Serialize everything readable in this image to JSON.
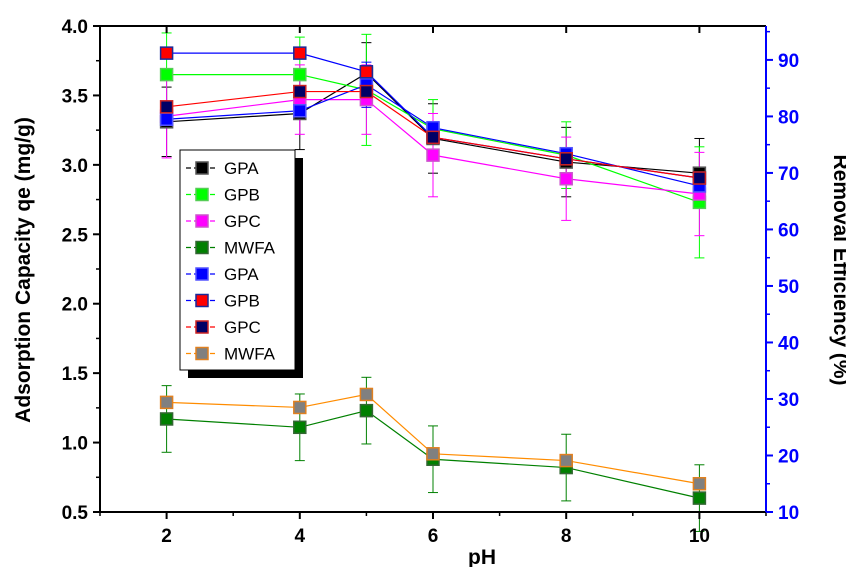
{
  "chart_data": {
    "type": "line",
    "xlabel": "pH",
    "ylabel_left": "Adsorption Capacity qe (mg/g)",
    "ylabel_right": "Removal Efficiency (%)",
    "x": [
      2,
      4,
      5,
      6,
      8,
      10
    ],
    "x_ticks": [
      "2",
      "4",
      "6",
      "8",
      "10"
    ],
    "x_tick_values": [
      2,
      4,
      6,
      8,
      10
    ],
    "xlim": [
      1,
      11
    ],
    "ylim_left": [
      0.5,
      4.0
    ],
    "ylim_right": [
      10,
      96
    ],
    "y_ticks_left": [
      "0.5",
      "1.0",
      "1.5",
      "2.0",
      "2.5",
      "3.0",
      "3.5",
      "4.0"
    ],
    "y_ticks_left_values": [
      0.5,
      1.0,
      1.5,
      2.0,
      2.5,
      3.0,
      3.5,
      4.0
    ],
    "y_ticks_right": [
      "10",
      "20",
      "30",
      "40",
      "50",
      "60",
      "70",
      "80",
      "90"
    ],
    "y_ticks_right_values": [
      10,
      20,
      30,
      40,
      50,
      60,
      70,
      80,
      90
    ],
    "grid": false,
    "legend_position": "top-left",
    "series": [
      {
        "name": "GPA",
        "axis": "left",
        "color": "#000000",
        "edge": "#555555",
        "values": [
          3.31,
          3.37,
          3.66,
          3.19,
          3.02,
          2.94
        ],
        "errors": [
          0.25,
          0.26,
          0.22,
          0.25,
          0.25,
          0.25
        ]
      },
      {
        "name": "GPB",
        "axis": "left",
        "color": "#00ff00",
        "edge": "#55cc55",
        "values": [
          3.65,
          3.65,
          3.54,
          3.26,
          3.07,
          2.73
        ],
        "errors": [
          0.3,
          0.27,
          0.4,
          0.21,
          0.24,
          0.4
        ]
      },
      {
        "name": "GPC",
        "axis": "left",
        "color": "#ff00ff",
        "edge": "#cc55cc",
        "values": [
          3.35,
          3.47,
          3.47,
          3.07,
          2.9,
          2.79
        ],
        "errors": [
          0.3,
          0.25,
          0.25,
          0.3,
          0.3,
          0.3
        ]
      },
      {
        "name": "MWFA",
        "axis": "left",
        "color": "#008000",
        "edge": "#336633",
        "values": [
          1.17,
          1.11,
          1.23,
          0.88,
          0.82,
          0.6
        ],
        "errors": [
          0.24,
          0.24,
          0.24,
          0.24,
          0.24,
          0.24
        ]
      },
      {
        "name": "GPA",
        "axis": "right",
        "color": "#0000ff",
        "edge": "#5555ff",
        "values": [
          79.5,
          81.0,
          85.6,
          78.0,
          73.4,
          67.7
        ],
        "errors": [
          0,
          0,
          4.0,
          0,
          0,
          0
        ]
      },
      {
        "name": "GPB",
        "axis": "right",
        "color": "#ff0000",
        "edge": "#1a2a99",
        "values": [
          91.2,
          91.2,
          87.9,
          76.3,
          72.5,
          69.1
        ],
        "errors": [
          0,
          0,
          0,
          0,
          0,
          0
        ]
      },
      {
        "name": "GPC",
        "axis": "right",
        "color": "#000066",
        "edge": "#cc2222",
        "values": [
          81.7,
          84.4,
          84.4,
          76.3,
          72.5,
          69.1
        ],
        "errors": [
          0,
          0,
          0,
          0,
          0,
          0
        ]
      },
      {
        "name": "MWFA",
        "axis": "right",
        "color": "#808080",
        "edge": "#e08020",
        "values": [
          29.4,
          28.5,
          30.8,
          20.3,
          19.1,
          15.0
        ],
        "errors": [
          0,
          0,
          0,
          0,
          0,
          0
        ]
      }
    ]
  }
}
